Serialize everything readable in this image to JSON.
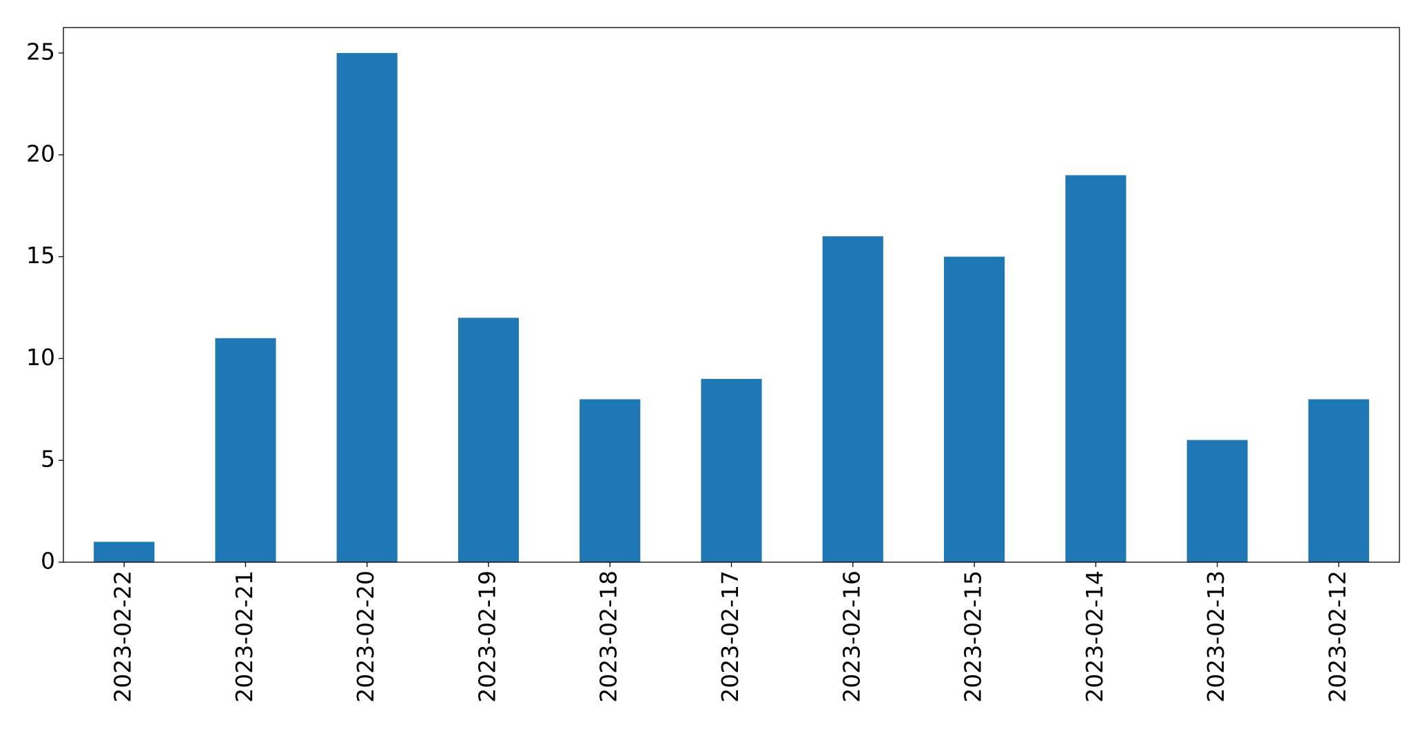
{
  "chart_data": {
    "type": "bar",
    "categories": [
      "2023-02-22",
      "2023-02-21",
      "2023-02-20",
      "2023-02-19",
      "2023-02-18",
      "2023-02-17",
      "2023-02-16",
      "2023-02-15",
      "2023-02-14",
      "2023-02-13",
      "2023-02-12"
    ],
    "values": [
      1,
      11,
      25,
      12,
      8,
      9,
      16,
      15,
      19,
      6,
      8
    ],
    "color": "#1f77b4",
    "ylim": [
      0,
      26.25
    ],
    "yticks": [
      0,
      5,
      10,
      15,
      20,
      25
    ],
    "grid": false
  }
}
